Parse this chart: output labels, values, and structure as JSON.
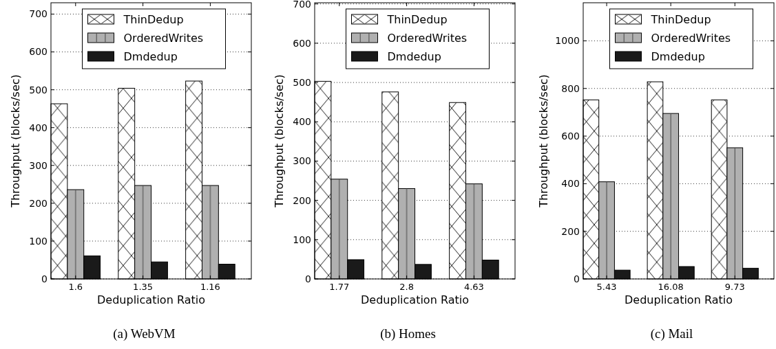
{
  "chart_data": [
    {
      "type": "bar",
      "title": "(a) WebVM",
      "xlabel": "Deduplication Ratio",
      "ylabel": "Throughput (blocks/sec)",
      "categories": [
        "1.6",
        "1.35",
        "1.16"
      ],
      "series": [
        {
          "name": "ThinDedup",
          "color": "#ffffff",
          "values": [
            463,
            504,
            523
          ]
        },
        {
          "name": "OrderedWrites",
          "color": "#b0b0b0",
          "values": [
            236,
            247,
            247
          ]
        },
        {
          "name": "Dmdedup",
          "color": "#1a1a1a",
          "values": [
            61,
            45,
            39
          ]
        }
      ],
      "ylim": [
        0,
        730
      ],
      "yticks": [
        0,
        100,
        200,
        300,
        400,
        500,
        600,
        700
      ],
      "grid": "y",
      "legend": "top"
    },
    {
      "type": "bar",
      "title": "(b) Homes",
      "xlabel": "Deduplication Ratio",
      "ylabel": "Throughput (blocks/sec)",
      "categories": [
        "1.77",
        "2.8",
        "4.63"
      ],
      "series": [
        {
          "name": "ThinDedup",
          "color": "#ffffff",
          "values": [
            503,
            476,
            449
          ]
        },
        {
          "name": "OrderedWrites",
          "color": "#b0b0b0",
          "values": [
            254,
            230,
            242
          ]
        },
        {
          "name": "Dmdedup",
          "color": "#1a1a1a",
          "values": [
            49,
            37,
            48
          ]
        }
      ],
      "ylim": [
        0,
        703
      ],
      "yticks": [
        0,
        100,
        200,
        300,
        400,
        500,
        600,
        700
      ],
      "grid": "y",
      "legend": "top"
    },
    {
      "type": "bar",
      "title": "(c) Mail",
      "xlabel": "Deduplication Ratio",
      "ylabel": "Throughput (blocks/sec)",
      "categories": [
        "5.43",
        "16.08",
        "9.73"
      ],
      "series": [
        {
          "name": "ThinDedup",
          "color": "#ffffff",
          "values": [
            752,
            828,
            752
          ]
        },
        {
          "name": "OrderedWrites",
          "color": "#b0b0b0",
          "values": [
            408,
            695,
            551
          ]
        },
        {
          "name": "Dmdedup",
          "color": "#1a1a1a",
          "values": [
            37,
            52,
            45
          ]
        }
      ],
      "ylim": [
        0,
        1160
      ],
      "yticks": [
        0,
        200,
        400,
        600,
        800,
        1000
      ],
      "grid": "y",
      "legend": "top"
    }
  ]
}
